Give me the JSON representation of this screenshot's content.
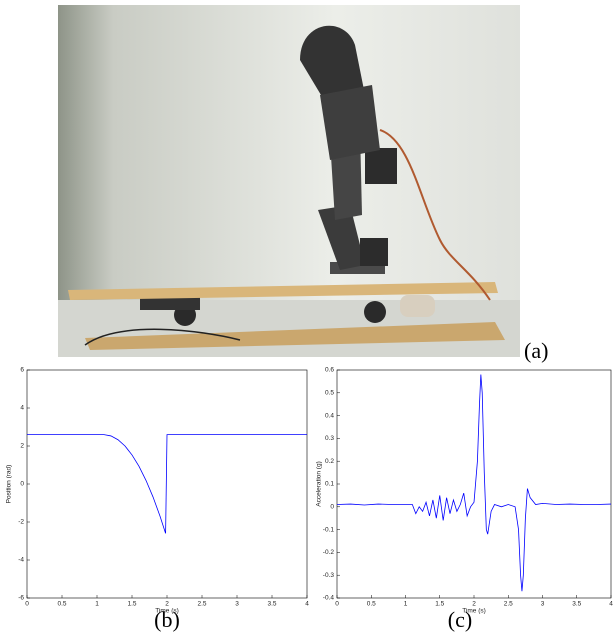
{
  "photo": {
    "caption": "(a)"
  },
  "chart_data": [
    {
      "type": "line",
      "caption": "(b)",
      "xlabel": "Time (s)",
      "ylabel": "Position (rad)",
      "x": [
        0,
        1.1,
        1.2,
        1.3,
        1.4,
        1.5,
        1.6,
        1.7,
        1.8,
        1.9,
        1.98,
        2.0,
        4
      ],
      "values": [
        2.6,
        2.6,
        2.53,
        2.33,
        2.0,
        1.53,
        0.93,
        0.19,
        -0.68,
        -1.69,
        -2.6,
        2.6,
        2.6
      ],
      "color": "#0000ff",
      "xlim": [
        0,
        4
      ],
      "xticks": [
        0,
        0.5,
        1,
        1.5,
        2,
        2.5,
        3,
        3.5,
        4
      ],
      "ylim": [
        -6,
        6
      ],
      "yticks": [
        -6,
        -4,
        -2,
        0,
        2,
        4,
        6
      ],
      "grid": false
    },
    {
      "type": "line",
      "caption": "(c)",
      "xlabel": "Time (s)",
      "ylabel": "Acceleration (g)",
      "x": [
        0,
        0.2,
        0.4,
        0.6,
        0.8,
        1.0,
        1.1,
        1.15,
        1.2,
        1.25,
        1.3,
        1.35,
        1.4,
        1.45,
        1.5,
        1.55,
        1.6,
        1.65,
        1.7,
        1.75,
        1.8,
        1.85,
        1.9,
        1.95,
        2.0,
        2.05,
        2.08,
        2.1,
        2.12,
        2.15,
        2.18,
        2.2,
        2.25,
        2.3,
        2.4,
        2.5,
        2.6,
        2.65,
        2.68,
        2.7,
        2.72,
        2.75,
        2.78,
        2.82,
        2.9,
        3.0,
        3.2,
        3.4,
        3.6,
        3.8,
        4.0
      ],
      "values": [
        0.01,
        0.012,
        0.008,
        0.012,
        0.01,
        0.01,
        0.01,
        -0.03,
        0.0,
        -0.02,
        0.02,
        -0.04,
        0.03,
        -0.05,
        0.05,
        -0.06,
        0.04,
        -0.03,
        0.03,
        -0.02,
        0.01,
        0.06,
        -0.04,
        0.0,
        0.02,
        0.2,
        0.45,
        0.58,
        0.5,
        0.15,
        -0.1,
        -0.12,
        -0.02,
        0.01,
        0.0,
        0.01,
        0.0,
        -0.1,
        -0.3,
        -0.37,
        -0.3,
        -0.05,
        0.08,
        0.04,
        0.01,
        0.015,
        0.01,
        0.012,
        0.01,
        0.01,
        0.012
      ],
      "color": "#0000ff",
      "xlim": [
        0,
        4
      ],
      "xticks": [
        0,
        0.5,
        1,
        1.5,
        2,
        2.5,
        3,
        3.5,
        4
      ],
      "ylim": [
        -0.4,
        0.6
      ],
      "yticks": [
        -0.4,
        -0.3,
        -0.2,
        -0.1,
        0,
        0.1,
        0.2,
        0.3,
        0.4,
        0.5,
        0.6
      ],
      "grid": false
    }
  ]
}
